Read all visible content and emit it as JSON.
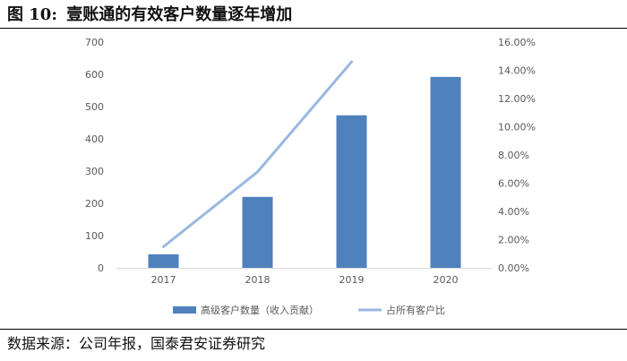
{
  "figure": {
    "label": "图",
    "number": "10:",
    "title": "壹账通的有效客户数量逐年增加",
    "source": "数据来源：公司年报，国泰君安证券研究"
  },
  "chart_data": {
    "type": "bar+line",
    "categories": [
      "2017",
      "2018",
      "2019",
      "2020"
    ],
    "series": [
      {
        "name": "高级客户数量（收入贡献）",
        "type": "bar",
        "axis": "left",
        "values": [
          42,
          220,
          473,
          592
        ],
        "color": "#4f81bd"
      },
      {
        "name": "占所有客户比",
        "type": "line",
        "axis": "right",
        "values": [
          1.5,
          6.8,
          14.6,
          null
        ],
        "color": "#9ab8e0"
      }
    ],
    "y_left": {
      "min": 0,
      "max": 700,
      "step": 100,
      "ticks": [
        "0",
        "100",
        "200",
        "300",
        "400",
        "500",
        "600",
        "700"
      ]
    },
    "y_right": {
      "min": 0,
      "max": 16,
      "step": 2,
      "ticks": [
        "0.00%",
        "2.00%",
        "4.00%",
        "6.00%",
        "8.00%",
        "10.00%",
        "12.00%",
        "14.00%",
        "16.00%"
      ]
    },
    "grid": false,
    "legend_position": "bottom"
  }
}
